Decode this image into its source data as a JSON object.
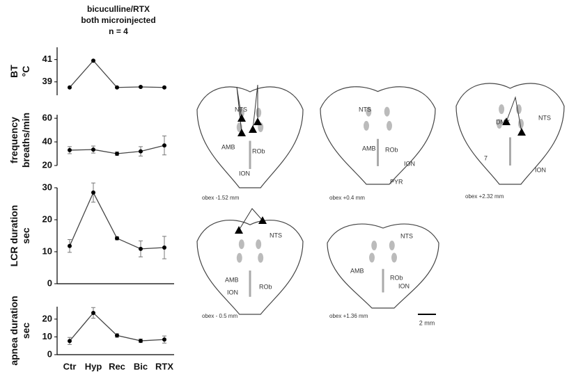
{
  "header": {
    "title": [
      "bicuculline/RTX",
      "both microinjected"
    ],
    "subtitle": "n = 4"
  },
  "chart_data": [
    {
      "type": "line",
      "ylabel": [
        "BT",
        "°C"
      ],
      "categories": [
        null,
        null,
        null,
        null,
        null
      ],
      "values": [
        38.5,
        40.9,
        38.5,
        38.55,
        38.5
      ],
      "ylim": [
        37.8,
        42.1
      ],
      "yticks": [
        39,
        41
      ],
      "color": "#000000"
    },
    {
      "type": "line",
      "ylabel": [
        "frequency",
        "breaths/min"
      ],
      "categories": [
        null,
        null,
        null,
        null,
        null
      ],
      "values": [
        33,
        33.5,
        30,
        32,
        37
      ],
      "errors": [
        3,
        3,
        1.5,
        4,
        8
      ],
      "ylim": [
        20,
        63
      ],
      "yticks": [
        20,
        40,
        60
      ],
      "color": "#000000"
    },
    {
      "type": "line",
      "ylabel": [
        "LCR duration",
        "sec"
      ],
      "categories": [
        null,
        null,
        null,
        null,
        null
      ],
      "values": [
        11.8,
        28.5,
        14.2,
        10.9,
        11.3
      ],
      "errors": [
        2,
        3,
        0.5,
        2.5,
        3.5
      ],
      "ylim": [
        0,
        30
      ],
      "yticks": [
        0,
        10,
        20,
        30
      ],
      "color": "#000000"
    },
    {
      "type": "line",
      "ylabel": [
        "apnea duration",
        "sec"
      ],
      "categories": [
        "Ctr",
        "Hyp",
        "Rec",
        "Bic",
        "RTX"
      ],
      "values": [
        7.7,
        23.5,
        10.8,
        7.8,
        8.5
      ],
      "errors": [
        2,
        3,
        1,
        1,
        2
      ],
      "ylim": [
        0,
        27
      ],
      "yticks": [
        0,
        10,
        20
      ],
      "color": "#000000"
    }
  ],
  "sections": [
    {
      "labels": [
        "NTS",
        "AMB",
        "ROb",
        "ION"
      ],
      "caption": "obex -1.52 mm"
    },
    {
      "labels": [
        "NTS",
        "AMB",
        "ROb",
        "ION",
        "PYR"
      ],
      "caption": "obex +0.4 mm"
    },
    {
      "labels": [
        "DMX",
        "NTS",
        "7",
        "ION"
      ],
      "caption": "obex +2.32 mm"
    },
    {
      "labels": [
        "NTS",
        "AMB",
        "ION",
        "ROb"
      ],
      "caption": "obex - 0.5 mm"
    },
    {
      "labels": [
        "NTS",
        "AMB",
        "ROb",
        "ION"
      ],
      "caption": "obex +1.36 mm"
    }
  ],
  "scale_bar": "2 mm"
}
